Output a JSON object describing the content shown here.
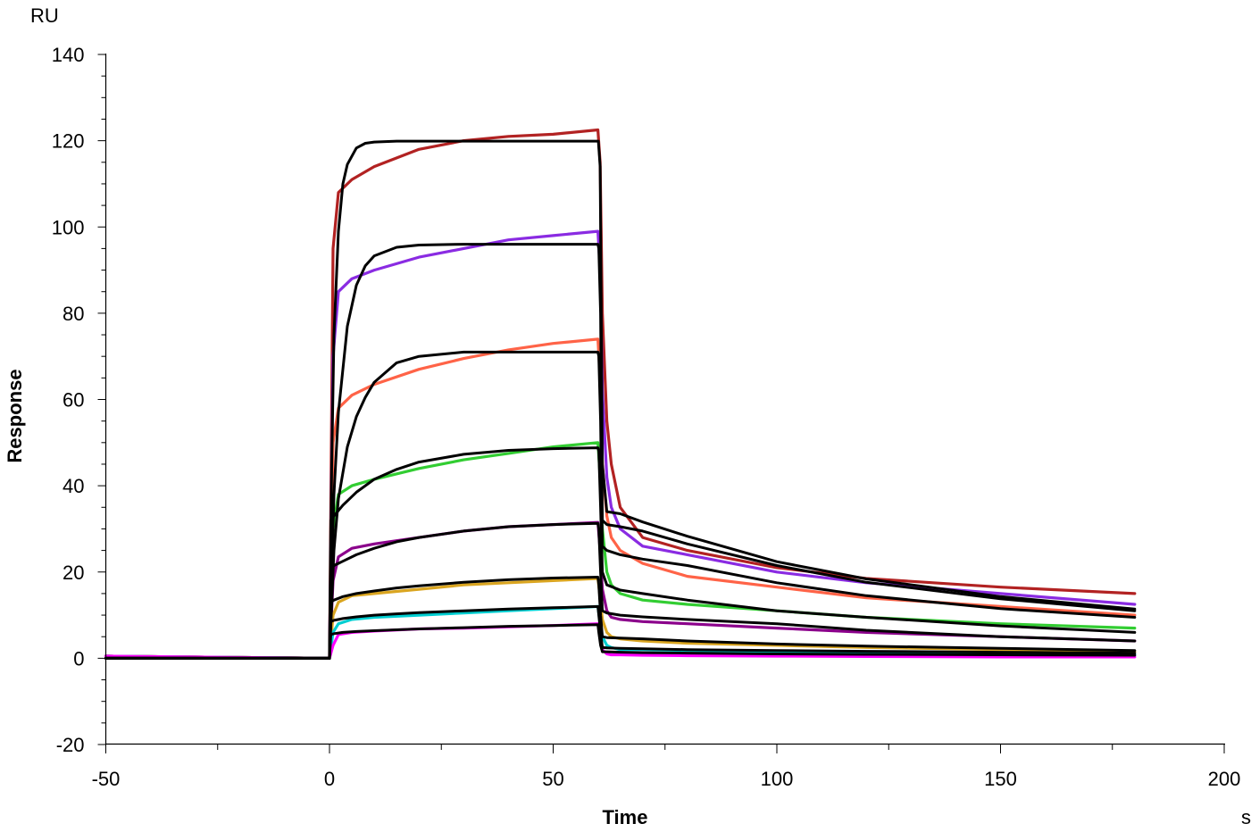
{
  "chart_data": {
    "type": "line",
    "xlabel": "Time",
    "ylabel": "Response",
    "x_unit": "s",
    "y_unit": "RU",
    "xlim": [
      -50,
      200
    ],
    "ylim": [
      -20,
      140
    ],
    "xticks": [
      -50,
      0,
      50,
      100,
      150,
      200
    ],
    "yticks": [
      -20,
      0,
      20,
      40,
      60,
      80,
      100,
      120,
      140
    ],
    "grid": false,
    "legend": "none",
    "series": [
      {
        "color": "#b22222",
        "x": [
          -50,
          0,
          0.8,
          2,
          5,
          10,
          20,
          30,
          40,
          50,
          60,
          60.5,
          61,
          62,
          63,
          65,
          70,
          80,
          100,
          120,
          150,
          180
        ],
        "y": [
          0.5,
          0,
          95,
          108,
          111,
          114,
          118,
          120,
          121,
          121.5,
          122.5,
          115,
          80,
          55,
          45,
          35,
          28,
          25,
          21,
          18.5,
          16.5,
          15
        ]
      },
      {
        "color": "#8a2be2",
        "x": [
          -50,
          0,
          0.8,
          2,
          5,
          10,
          20,
          30,
          40,
          50,
          60,
          60.5,
          61,
          62,
          63,
          65,
          70,
          80,
          100,
          120,
          150,
          180
        ],
        "y": [
          0.5,
          0,
          70,
          85,
          88,
          90,
          93,
          95,
          97,
          98,
          99,
          90,
          62,
          42,
          35,
          30,
          26,
          24,
          20,
          17.5,
          15,
          12.5
        ]
      },
      {
        "color": "#ff6347",
        "x": [
          -50,
          0,
          0.8,
          2,
          5,
          10,
          20,
          30,
          40,
          50,
          60,
          60.5,
          61,
          62,
          63,
          65,
          70,
          80,
          100,
          120,
          150,
          180
        ],
        "y": [
          0.5,
          0,
          50,
          58,
          61,
          63.5,
          67,
          69.5,
          71.5,
          73,
          74,
          65,
          45,
          33,
          28,
          25,
          22,
          19,
          16.5,
          14,
          12,
          10
        ]
      },
      {
        "color": "#32cd32",
        "x": [
          -50,
          0,
          0.8,
          2,
          5,
          10,
          20,
          30,
          40,
          50,
          60,
          60.5,
          61,
          62,
          63,
          65,
          70,
          80,
          100,
          120,
          150,
          180
        ],
        "y": [
          0.5,
          0,
          30,
          38,
          40,
          41.5,
          44,
          46,
          47.5,
          49,
          50,
          42,
          30,
          20,
          17,
          15,
          13.5,
          12.5,
          11,
          9.5,
          8,
          7
        ]
      },
      {
        "color": "#8b008b",
        "x": [
          -50,
          0,
          0.8,
          2,
          5,
          10,
          20,
          30,
          40,
          50,
          60,
          60.5,
          61,
          62,
          63,
          65,
          70,
          80,
          100,
          120,
          150,
          180
        ],
        "y": [
          0.5,
          0,
          18,
          23.5,
          25.5,
          26.5,
          28,
          29.5,
          30.5,
          31,
          31.5,
          25,
          16,
          11,
          9.5,
          9,
          8.5,
          8,
          7,
          6,
          5,
          4
        ]
      },
      {
        "color": "#daa520",
        "x": [
          -50,
          0,
          0.8,
          2,
          5,
          10,
          20,
          30,
          40,
          50,
          60,
          60.5,
          61,
          62,
          63,
          65,
          70,
          80,
          100,
          120,
          150,
          180
        ],
        "y": [
          0.5,
          0,
          10,
          13,
          14.5,
          15,
          16,
          17,
          17.5,
          18,
          18.5,
          14,
          9,
          6,
          5,
          4.5,
          4,
          3.5,
          3,
          2.5,
          2,
          1.5
        ]
      },
      {
        "color": "#00ced1",
        "x": [
          -50,
          0,
          0.8,
          2,
          5,
          10,
          20,
          30,
          40,
          50,
          60,
          60.5,
          61,
          62,
          63,
          65,
          70,
          80,
          100,
          120,
          150,
          180
        ],
        "y": [
          0.5,
          0,
          6,
          8,
          9,
          9.5,
          10,
          10.5,
          11,
          11.5,
          12,
          8,
          5,
          3,
          2.5,
          2,
          2,
          1.8,
          1.5,
          1.2,
          1,
          0.8
        ]
      },
      {
        "color": "#ff00ff",
        "x": [
          -50,
          0,
          0.8,
          2,
          5,
          10,
          20,
          30,
          40,
          50,
          60,
          60.5,
          61,
          62,
          63,
          65,
          70,
          80,
          100,
          120,
          150,
          180
        ],
        "y": [
          0.5,
          0,
          3,
          5.5,
          6,
          6.3,
          6.8,
          7,
          7.3,
          7.6,
          8,
          5,
          2,
          1,
          0.8,
          0.8,
          0.7,
          0.6,
          0.5,
          0.4,
          0.3,
          0.3
        ]
      },
      {
        "color": "#000000",
        "x": [
          -50,
          0,
          0.5,
          1,
          2,
          3,
          4,
          6,
          8,
          10,
          15,
          60,
          60.1,
          60.5,
          61,
          62,
          65,
          70,
          80,
          100,
          120,
          150,
          180
        ],
        "y": [
          0,
          0,
          45,
          75,
          99,
          110,
          114.5,
          118.3,
          119.4,
          119.7,
          119.9,
          119.9,
          119.9,
          114,
          45,
          34,
          33.5,
          31.6,
          28.3,
          22.4,
          18.4,
          14.3,
          11.4
        ]
      },
      {
        "color": "#000000",
        "x": [
          -50,
          0,
          1,
          2,
          4,
          6,
          8,
          10,
          15,
          20,
          30,
          60,
          60.2,
          60.6,
          61,
          62,
          65,
          70,
          80,
          100,
          120,
          150,
          180
        ],
        "y": [
          0,
          0,
          38,
          57,
          77,
          86.5,
          91,
          93.3,
          95.3,
          95.8,
          96,
          96,
          95,
          80,
          32,
          31,
          30.5,
          29.5,
          26.5,
          21.5,
          17.6,
          13.8,
          11
        ]
      },
      {
        "color": "#000000",
        "x": [
          -50,
          0,
          1,
          2,
          4,
          6,
          8,
          10,
          15,
          20,
          30,
          60,
          60.2,
          60.6,
          61,
          62,
          65,
          70,
          80,
          100,
          120,
          150,
          180
        ],
        "y": [
          0,
          0,
          25,
          37,
          49,
          56,
          60.5,
          64,
          68.5,
          70,
          71,
          71,
          70,
          55,
          26,
          25,
          24,
          23,
          21.5,
          17.5,
          14.5,
          11.5,
          9.5
        ]
      },
      {
        "color": "#000000",
        "x": [
          -50,
          0,
          0.3,
          1,
          3,
          6,
          10,
          15,
          20,
          30,
          40,
          50,
          60,
          60.2,
          60.6,
          61,
          62,
          65,
          70,
          80,
          100,
          120,
          150,
          180
        ],
        "y": [
          0,
          0,
          32,
          33,
          35.5,
          38.5,
          41.5,
          43.8,
          45.5,
          47.3,
          48.2,
          48.6,
          48.8,
          48,
          35,
          20,
          17,
          15.8,
          15,
          13.5,
          11,
          9.5,
          7.5,
          6
        ]
      },
      {
        "color": "#000000",
        "x": [
          -50,
          0,
          0.3,
          1,
          3,
          6,
          10,
          15,
          20,
          30,
          40,
          50,
          60,
          60.2,
          60.6,
          61,
          62,
          65,
          70,
          80,
          100,
          120,
          150,
          180
        ],
        "y": [
          0,
          0,
          20,
          21.5,
          22.5,
          24,
          25.5,
          27,
          28,
          29.5,
          30.5,
          31,
          31.3,
          30,
          20,
          11,
          10.5,
          10,
          9.6,
          9,
          8,
          6.5,
          5,
          4
        ]
      },
      {
        "color": "#000000",
        "x": [
          -50,
          0,
          0.3,
          1,
          3,
          6,
          10,
          15,
          20,
          30,
          40,
          50,
          60,
          60.2,
          60.6,
          61,
          62,
          65,
          70,
          80,
          100,
          120,
          150,
          180
        ],
        "y": [
          0,
          0,
          13,
          13.5,
          14.3,
          15,
          15.6,
          16.3,
          16.8,
          17.6,
          18.2,
          18.6,
          18.8,
          17,
          10,
          5,
          4.8,
          4.7,
          4.5,
          4,
          3.3,
          2.8,
          2.3,
          1.8
        ]
      },
      {
        "color": "#000000",
        "x": [
          -50,
          0,
          0.3,
          1,
          3,
          6,
          10,
          15,
          20,
          30,
          40,
          50,
          60,
          60.2,
          60.6,
          61,
          62,
          65,
          70,
          80,
          100,
          120,
          150,
          180
        ],
        "y": [
          0,
          0,
          8.5,
          8.8,
          9.2,
          9.6,
          10,
          10.3,
          10.6,
          11,
          11.4,
          11.7,
          12,
          10,
          6,
          2.5,
          2.4,
          2.3,
          2.2,
          2,
          1.8,
          1.6,
          1.4,
          1.2
        ]
      },
      {
        "color": "#000000",
        "x": [
          -50,
          0,
          0.3,
          1,
          3,
          6,
          10,
          15,
          20,
          30,
          40,
          50,
          60,
          60.2,
          60.6,
          61,
          62,
          65,
          70,
          80,
          100,
          120,
          150,
          180
        ],
        "y": [
          0,
          0,
          5.5,
          5.7,
          6,
          6.2,
          6.4,
          6.6,
          6.8,
          7.1,
          7.4,
          7.6,
          7.8,
          6,
          3,
          1.5,
          1.5,
          1.4,
          1.3,
          1.2,
          1,
          0.9,
          0.8,
          0.7
        ]
      }
    ]
  }
}
